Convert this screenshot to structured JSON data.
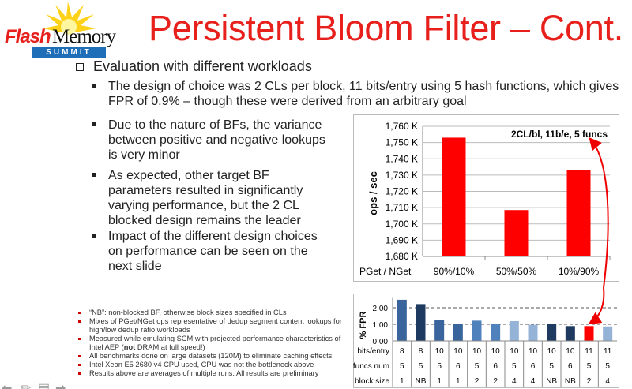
{
  "logo": {
    "text_flash": "Flash",
    "text_memory": "Memory",
    "text_summit": "SUMMIT"
  },
  "title": "Persistent Bloom Filter – Cont.",
  "main_bullet": "Evaluation with different workloads",
  "sub_bullets": [
    "The design of choice was 2 CLs per block, 11 bits/entry using 5 hash functions, which gives FPR of 0.9% – though these were derived from an arbitrary goal",
    "Due to the nature of BFs, the variance between positive and negative lookups is very minor",
    "As expected, other target BF parameters resulted in significantly varying performance, but the 2 CL blocked design remains the leader",
    "Impact of the different design choices on performance can be seen on the next slide"
  ],
  "notes": [
    {
      "pre": "“NB”: non-blocked BF, otherwise block sizes specified in CLs"
    },
    {
      "pre": "Mixes of PGet/NGet ops representative of dedup segment content lookups for high/low dedup ratio workloads"
    },
    {
      "pre": "Measured while emulating SCM with projected performance characteristics of Intel AEP (",
      "bold": "not",
      "post": " DRAM at full speed!)"
    },
    {
      "pre": "All benchmarks done on large datasets (120M) to eliminate caching effects"
    },
    {
      "pre": "Intel Xeon E5 2680 v4 CPU used, CPU was not the bottleneck above"
    },
    {
      "pre": "Results above are averages of multiple runs. All results are preliminary"
    }
  ],
  "nav_icons": [
    "arrow-left-icon",
    "pencil-icon",
    "screen-icon",
    "arrow-right-icon"
  ],
  "chart_data": [
    {
      "type": "bar",
      "ylabel": "ops / sec",
      "xlabel": "PGet / NGet",
      "categories": [
        "90%/10%",
        "50%/50%",
        "10%/90%"
      ],
      "values": [
        1753,
        1708.5,
        1733
      ],
      "value_unit": "K",
      "ylim": [
        1680,
        1760
      ],
      "yticks": [
        "1,680 K",
        "1,690 K",
        "1,700 K",
        "1,710 K",
        "1,720 K",
        "1,730 K",
        "1,740 K",
        "1,750 K",
        "1,760 K"
      ],
      "annotation": "2CL/bl, 11b/e, 5 funcs",
      "grid": true,
      "color": "#ff0000"
    },
    {
      "type": "bar",
      "ylabel": "% FPR",
      "ylim": [
        0,
        2.6
      ],
      "yticks": [
        "0.00",
        "1.00",
        "2.00"
      ],
      "values": [
        2.48,
        2.22,
        1.27,
        1.0,
        1.22,
        1.0,
        1.19,
        0.97,
        1.0,
        0.89,
        0.89,
        0.87
      ],
      "colors": [
        "#3a659c",
        "#1f3a60",
        "#3a659c",
        "#3a659c",
        "#4f81bd",
        "#4f81bd",
        "#95b3d7",
        "#95b3d7",
        "#1f3a60",
        "#1f3a60",
        "#ff0000",
        "#95b3d7"
      ],
      "table": {
        "rows": [
          {
            "label": "bits/entry",
            "cells": [
              "8",
              "8",
              "10",
              "10",
              "10",
              "10",
              "10",
              "10",
              "10",
              "10",
              "11",
              "11"
            ]
          },
          {
            "label": "funcs num",
            "cells": [
              "5",
              "5",
              "5",
              "6",
              "5",
              "6",
              "5",
              "6",
              "5",
              "6",
              "5",
              "5"
            ]
          },
          {
            "label": "block size",
            "cells": [
              "1",
              "NB",
              "1",
              "1",
              "2",
              "2",
              "4",
              "4",
              "NB",
              "NB",
              "2",
              "4"
            ]
          }
        ]
      },
      "grid": "dashed"
    }
  ]
}
